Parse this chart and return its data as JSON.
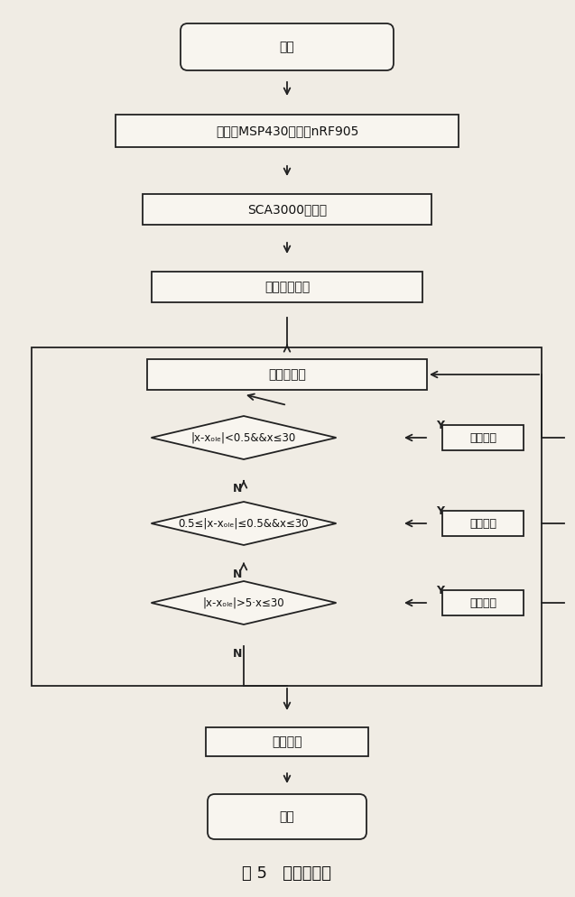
{
  "title": "图 5   程序流程图",
  "bg_color": "#f0ece4",
  "border_color": "#222222",
  "text_color": "#111111",
  "label_start": "开始",
  "label_init": "初始化MSP430、配置nRF905",
  "label_sca": "SCA3000初始化",
  "label_set": "设置工作状态",
  "label_measure": "测量倾斜角",
  "label_cond1": "|x-xₒₗₑ|<0.5&&x≤30",
  "label_cond2": "0.5≤|x-xₒₗₑ|≤0.5&&x≤30",
  "label_cond3": "|x-xₒₗₑ|>5·x≤30",
  "label_state": "进入状态",
  "label_read": "读取数据",
  "label_end": "结束",
  "label_Y": "Y",
  "label_N": "N"
}
